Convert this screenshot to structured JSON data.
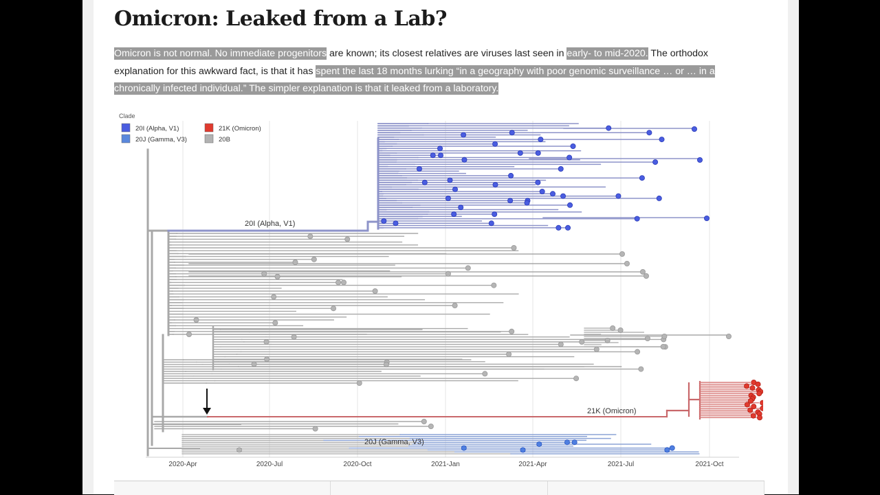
{
  "article": {
    "title": "Omicron: Leaked from a Lab?",
    "paragraph": [
      {
        "text": "Omicron is not normal. No immediate progenitors",
        "hl": true
      },
      {
        "text": " are known; its closest relatives are viruses last seen in ",
        "hl": false
      },
      {
        "text": "early- to mid-2020.",
        "hl": true
      },
      {
        "text": " The orthodox explanation for this awkward fact, is that it has ",
        "hl": false
      },
      {
        "text": "spent the last 18 months lurking “in a geography with poor genomic surveillance … or … in a chronically infected individual.” The simpler explanation is that it leaked from a laboratory.",
        "hl": true
      }
    ]
  },
  "legend": {
    "title": "Clade",
    "items": [
      {
        "label": "20I (Alpha, V1)",
        "color": "#4a5de0"
      },
      {
        "label": "21K (Omicron)",
        "color": "#e03a2e"
      },
      {
        "label": "20J (Gamma, V3)",
        "color": "#5a88dd"
      },
      {
        "label": "20B",
        "color": "#b2b2b2"
      }
    ]
  },
  "chart_data": {
    "type": "scatter",
    "x_ticks": [
      "2020-Apr",
      "2020-Jul",
      "2020-Oct",
      "2021-Jan",
      "2021-Apr",
      "2021-Jul",
      "2021-Oct"
    ],
    "annotations": [
      {
        "text": "20I (Alpha, V1)",
        "clade": "20I (Alpha, V1)"
      },
      {
        "text": "21K (Omicron)",
        "clade": "21K (Omicron)"
      },
      {
        "text": "20J (Gamma, V3)",
        "clade": "20J (Gamma, V3)"
      }
    ],
    "grid": true,
    "legend_position": "top-left"
  },
  "colors": {
    "alpha": "#4a5de0",
    "alpha_branch": "#8d93c9",
    "omicron": "#e03a2e",
    "omicron_branch": "#c9676a",
    "gamma": "#4f7fe0",
    "gamma_branch": "#8ba3d6",
    "base": "#b5b5b5",
    "base_branch": "#a8a8a8"
  }
}
